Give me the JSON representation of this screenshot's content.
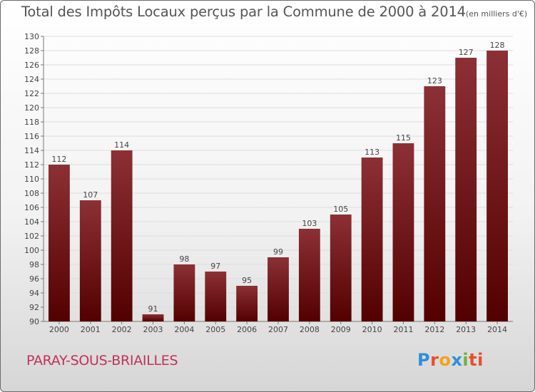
{
  "header": {
    "title": "Total des Impôts Locaux perçus par la Commune de 2000 à 2014",
    "unit": "(en milliers d'€)"
  },
  "footer": {
    "commune": "PARAY-SOUS-BRIAILLES",
    "logo_letters": [
      "P",
      "r",
      "o",
      "x",
      "i",
      "ti"
    ]
  },
  "colors": {
    "bar_top": "#8c3035",
    "bar_bottom": "#530000",
    "text": "#555555",
    "commune": "#c0325a"
  },
  "chart_data": {
    "type": "bar",
    "title": "Total des Impôts Locaux perçus par la Commune de 2000 à 2014",
    "xlabel": "",
    "ylabel": "",
    "categories": [
      "2000",
      "2001",
      "2002",
      "2003",
      "2004",
      "2005",
      "2006",
      "2007",
      "2008",
      "2009",
      "2010",
      "2011",
      "2012",
      "2013",
      "2014"
    ],
    "values": [
      112,
      107,
      114,
      91,
      98,
      97,
      95,
      99,
      103,
      105,
      113,
      115,
      123,
      127,
      128
    ],
    "ylim": [
      90,
      130
    ],
    "yticks": [
      "90",
      "92",
      "94",
      "96",
      "98",
      "100",
      "102",
      "104",
      "106",
      "108",
      "110",
      "112",
      "114",
      "116",
      "118",
      "120",
      "122",
      "124",
      "126",
      "128",
      "130"
    ],
    "grid": true
  }
}
